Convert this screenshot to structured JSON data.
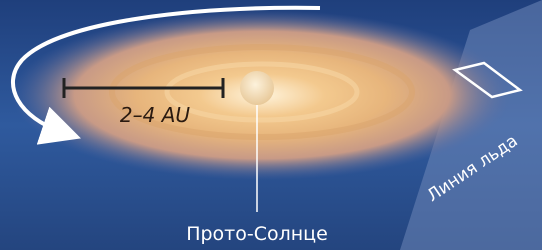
{
  "labels": {
    "scale": "2–4 AU",
    "sun": "Прото-Солнце",
    "ice_line": "Линия льда"
  }
}
